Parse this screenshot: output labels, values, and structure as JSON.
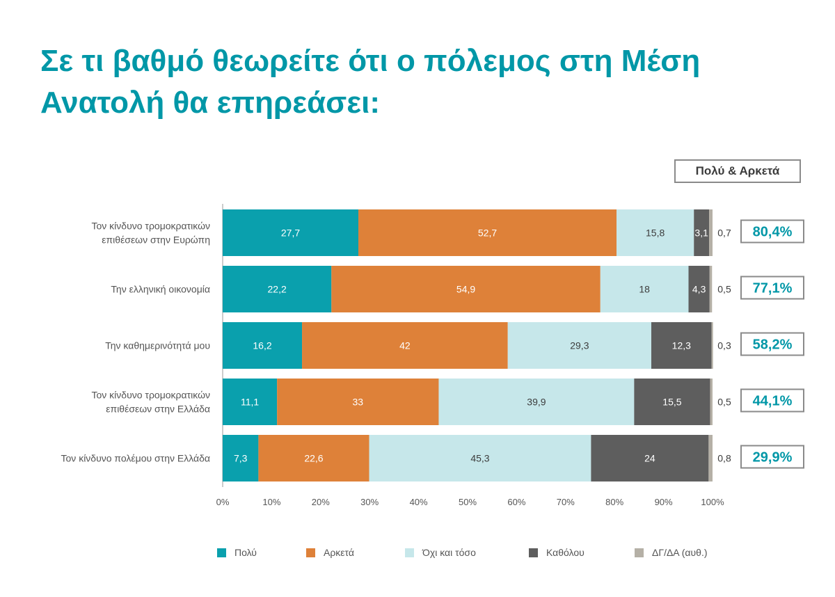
{
  "title": "Σε τι βαθμό θεωρείτε ότι ο πόλεμος στη Μέση Ανατολή θα επηρεάσει:",
  "summary_header": "Πολύ & Αρκετά",
  "colors": {
    "Πολύ": "#0aa0ad",
    "Αρκετά": "#de8139",
    "Όχι και τόσο": "#c6e7ea",
    "Καθόλου": "#5e5e5e",
    "ΔΓ/ΔΑ (αυθ.)": "#b5b0a6"
  },
  "chart_data": {
    "type": "bar",
    "orientation": "horizontal",
    "stacked": true,
    "title": "Σε τι βαθμό θεωρείτε ότι ο πόλεμος στη Μέση Ανατολή θα επηρεάσει:",
    "categories": [
      [
        "Τον κίνδυνο τρομοκρατικών",
        "επιθέσεων στην Ευρώπη"
      ],
      [
        "Την ελληνική οικονομία"
      ],
      [
        "Την καθημερινότητά μου"
      ],
      [
        "Τον κίνδυνο τρομοκρατικών",
        "επιθέσεων στην Ελλάδα"
      ],
      [
        "Τον κίνδυνο πολέμου στην Ελλάδα"
      ]
    ],
    "series": [
      {
        "name": "Πολύ",
        "values": [
          27.7,
          22.2,
          16.2,
          11.1,
          7.3
        ],
        "labels": [
          "27,7",
          "22,2",
          "16,2",
          "11,1",
          "7,3"
        ]
      },
      {
        "name": "Αρκετά",
        "values": [
          52.7,
          54.9,
          42,
          33,
          22.6
        ],
        "labels": [
          "52,7",
          "54,9",
          "42",
          "33",
          "22,6"
        ]
      },
      {
        "name": "Όχι και τόσο",
        "values": [
          15.8,
          18,
          29.3,
          39.9,
          45.3
        ],
        "labels": [
          "15,8",
          "18",
          "29,3",
          "39,9",
          "45,3"
        ]
      },
      {
        "name": "Καθόλου",
        "values": [
          3.1,
          4.3,
          12.3,
          15.5,
          24
        ],
        "labels": [
          "3,1",
          "4,3",
          "12,3",
          "15,5",
          "24"
        ]
      },
      {
        "name": "ΔΓ/ΔΑ (αυθ.)",
        "values": [
          0.7,
          0.5,
          0.3,
          0.5,
          0.8
        ],
        "labels": [
          "0,7",
          "0,5",
          "0,3",
          "0,5",
          "0,8"
        ]
      }
    ],
    "summary": {
      "name": "Πολύ & Αρκετά",
      "values": [
        80.4,
        77.1,
        58.2,
        44.1,
        29.9
      ],
      "labels": [
        "80,4%",
        "77,1%",
        "58,2%",
        "44,1%",
        "29,9%"
      ]
    },
    "x_ticks": [
      "0%",
      "10%",
      "20%",
      "30%",
      "40%",
      "50%",
      "60%",
      "70%",
      "80%",
      "90%",
      "100%"
    ],
    "xlim": [
      0,
      100
    ],
    "grid": false,
    "legend_position": "bottom"
  }
}
